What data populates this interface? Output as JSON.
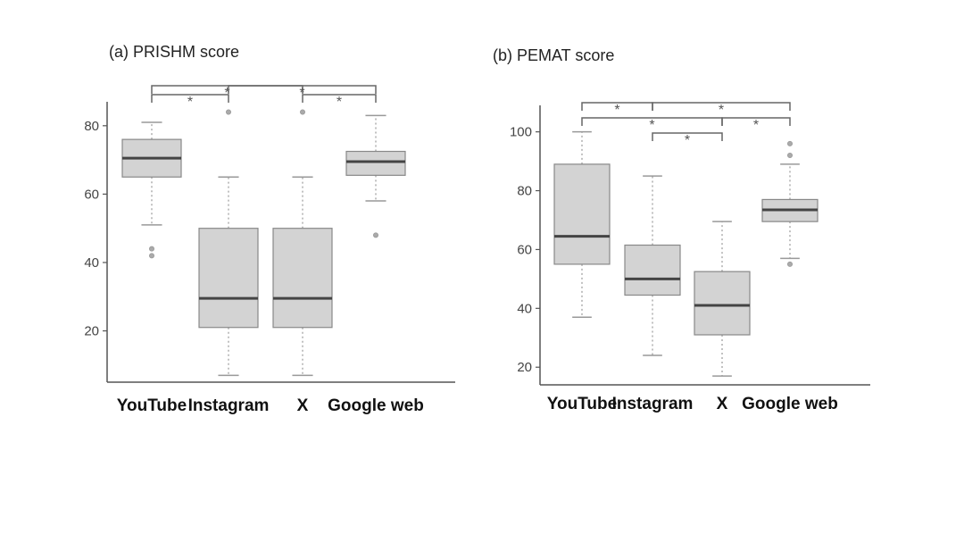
{
  "chart_data": [
    {
      "type": "box",
      "title": "(a) PRISHM score",
      "categories": [
        "YouTube",
        "Instagram",
        "X",
        "Google web"
      ],
      "ylim": [
        5,
        87
      ],
      "yticks": [
        20,
        40,
        60,
        80
      ],
      "grid": false,
      "boxes": [
        {
          "category": "YouTube",
          "whisker_low": 51,
          "q1": 65,
          "median": 70.5,
          "q3": 76,
          "whisker_high": 81,
          "outliers": [
            44,
            42
          ]
        },
        {
          "category": "Instagram",
          "whisker_low": 7,
          "q1": 21,
          "median": 29.5,
          "q3": 50,
          "whisker_high": 65,
          "outliers": [
            84
          ]
        },
        {
          "category": "X",
          "whisker_low": 7,
          "q1": 21,
          "median": 29.5,
          "q3": 50,
          "whisker_high": 65,
          "outliers": [
            84
          ]
        },
        {
          "category": "Google web",
          "whisker_low": 58,
          "q1": 65.5,
          "median": 69.5,
          "q3": 72.5,
          "whisker_high": 83,
          "outliers": [
            48
          ]
        }
      ],
      "significance": [
        {
          "from": 0,
          "to": 2,
          "level": 1,
          "label": "*"
        },
        {
          "from": 1,
          "to": 3,
          "level": 1,
          "label": "*"
        },
        {
          "from": 0,
          "to": 1,
          "level": 0,
          "label": "*"
        },
        {
          "from": 2,
          "to": 3,
          "level": 0,
          "label": "*"
        }
      ]
    },
    {
      "type": "box",
      "title": "(b) PEMAT score",
      "categories": [
        "YouTube",
        "Instagram",
        "X",
        "Google web"
      ],
      "ylim": [
        14,
        109
      ],
      "yticks": [
        20,
        40,
        60,
        80,
        100
      ],
      "grid": false,
      "boxes": [
        {
          "category": "YouTube",
          "whisker_low": 37,
          "q1": 55,
          "median": 64.5,
          "q3": 89,
          "whisker_high": 100,
          "outliers": []
        },
        {
          "category": "Instagram",
          "whisker_low": 24,
          "q1": 44.5,
          "median": 50,
          "q3": 61.5,
          "whisker_high": 85,
          "outliers": []
        },
        {
          "category": "X",
          "whisker_low": 17,
          "q1": 31,
          "median": 41,
          "q3": 52.5,
          "whisker_high": 69.5,
          "outliers": []
        },
        {
          "category": "Google web",
          "whisker_low": 57,
          "q1": 69.5,
          "median": 73.5,
          "q3": 77,
          "whisker_high": 89,
          "outliers": [
            96,
            92,
            55
          ]
        }
      ],
      "significance": [
        {
          "from": 0,
          "to": 1,
          "level": 2,
          "label": "*"
        },
        {
          "from": 1,
          "to": 3,
          "level": 2,
          "label": "*"
        },
        {
          "from": 0,
          "to": 2,
          "level": 1,
          "label": "*"
        },
        {
          "from": 2,
          "to": 3,
          "level": 1,
          "label": "*"
        },
        {
          "from": 1,
          "to": 2,
          "level": 0,
          "label": "*"
        }
      ]
    }
  ]
}
